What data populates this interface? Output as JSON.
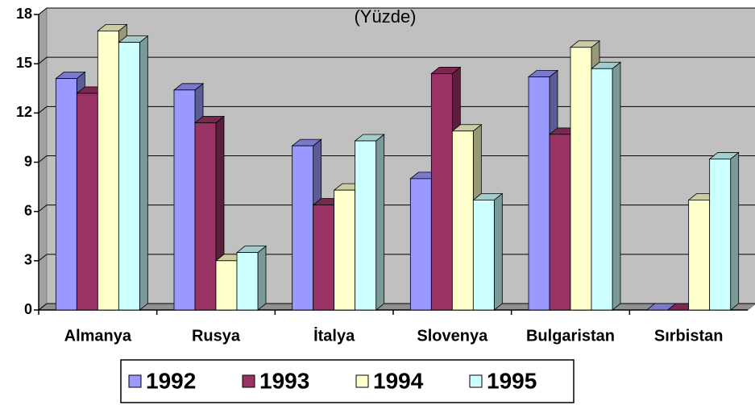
{
  "chart_data": {
    "type": "bar",
    "title": "(Yüzde)",
    "categories": [
      "Almanya",
      "Rusya",
      "İtalya",
      "Slovenya",
      "Bulgaristan",
      "Sırbistan"
    ],
    "series": [
      {
        "name": "1992",
        "color": "#9999ff",
        "values": [
          14.1,
          13.4,
          10.0,
          8.0,
          14.2,
          0
        ]
      },
      {
        "name": "1993",
        "color": "#993366",
        "values": [
          13.2,
          11.4,
          6.4,
          14.4,
          10.7,
          0
        ]
      },
      {
        "name": "1994",
        "color": "#ffffcc",
        "values": [
          17.0,
          3.0,
          7.3,
          10.9,
          16.0,
          6.7
        ]
      },
      {
        "name": "1995",
        "color": "#ccffff",
        "values": [
          16.3,
          3.5,
          10.3,
          6.7,
          14.7,
          9.2
        ]
      }
    ],
    "ylim": [
      0,
      18
    ],
    "yticks": [
      0,
      3,
      6,
      9,
      12,
      15,
      18
    ],
    "grid": true,
    "legend": "bottom"
  }
}
